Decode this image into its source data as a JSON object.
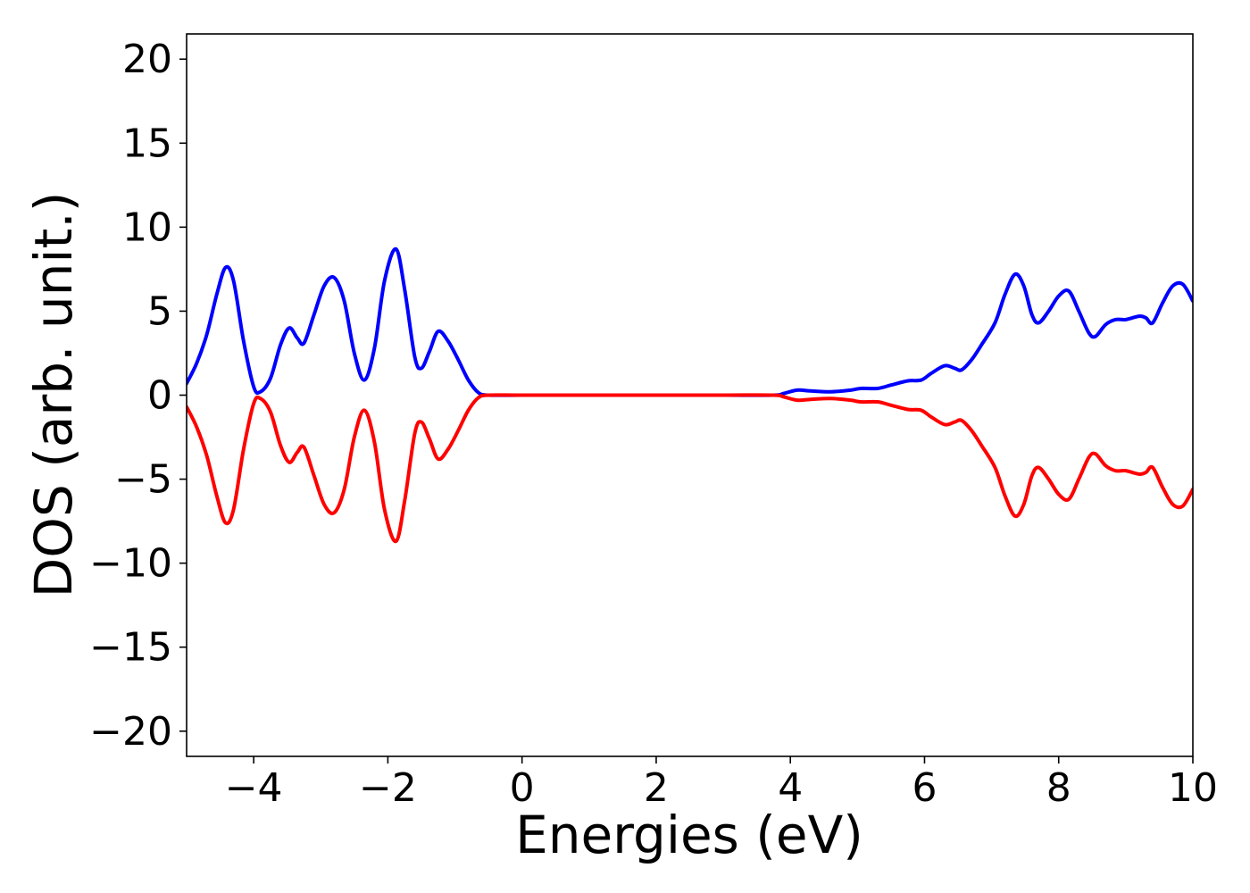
{
  "chart_data": {
    "type": "line",
    "title": "",
    "xlabel": "Energies (eV)",
    "ylabel": "DOS (arb. unit.)",
    "xlim": [
      -5,
      10
    ],
    "ylim": [
      -21.5,
      21.5
    ],
    "xticks": [
      {
        "value": -4,
        "label": "−4"
      },
      {
        "value": -2,
        "label": "−2"
      },
      {
        "value": 0,
        "label": "0"
      },
      {
        "value": 2,
        "label": "2"
      },
      {
        "value": 4,
        "label": "4"
      },
      {
        "value": 6,
        "label": "6"
      },
      {
        "value": 8,
        "label": "8"
      },
      {
        "value": 10,
        "label": "10"
      }
    ],
    "yticks": [
      {
        "value": -20,
        "label": "−20"
      },
      {
        "value": -15,
        "label": "−15"
      },
      {
        "value": -10,
        "label": "−10"
      },
      {
        "value": -5,
        "label": "−5"
      },
      {
        "value": 0,
        "label": "0"
      },
      {
        "value": 5,
        "label": "5"
      },
      {
        "value": 10,
        "label": "10"
      },
      {
        "value": 15,
        "label": "15"
      },
      {
        "value": 20,
        "label": "20"
      }
    ],
    "grid": false,
    "series": [
      {
        "color": "#0000ff",
        "points": [
          [
            -5.0,
            0.7
          ],
          [
            -4.85,
            1.9
          ],
          [
            -4.7,
            3.6
          ],
          [
            -4.55,
            6.0
          ],
          [
            -4.42,
            7.6
          ],
          [
            -4.3,
            6.8
          ],
          [
            -4.15,
            3.2
          ],
          [
            -4.0,
            0.5
          ],
          [
            -3.9,
            0.2
          ],
          [
            -3.75,
            1.0
          ],
          [
            -3.6,
            3.0
          ],
          [
            -3.47,
            4.0
          ],
          [
            -3.35,
            3.4
          ],
          [
            -3.25,
            3.1
          ],
          [
            -3.1,
            4.8
          ],
          [
            -2.95,
            6.5
          ],
          [
            -2.8,
            7.0
          ],
          [
            -2.65,
            5.6
          ],
          [
            -2.5,
            2.5
          ],
          [
            -2.35,
            0.9
          ],
          [
            -2.2,
            2.8
          ],
          [
            -2.05,
            6.8
          ],
          [
            -1.88,
            8.7
          ],
          [
            -1.75,
            6.3
          ],
          [
            -1.6,
            2.3
          ],
          [
            -1.5,
            1.6
          ],
          [
            -1.38,
            2.6
          ],
          [
            -1.25,
            3.8
          ],
          [
            -1.1,
            3.2
          ],
          [
            -0.95,
            2.1
          ],
          [
            -0.8,
            0.9
          ],
          [
            -0.65,
            0.15
          ],
          [
            -0.5,
            0.0
          ],
          [
            0.0,
            0.0
          ],
          [
            1.0,
            0.0
          ],
          [
            2.0,
            0.0
          ],
          [
            3.0,
            0.0
          ],
          [
            3.75,
            0.0
          ],
          [
            3.9,
            0.1
          ],
          [
            4.1,
            0.3
          ],
          [
            4.3,
            0.25
          ],
          [
            4.6,
            0.2
          ],
          [
            4.9,
            0.3
          ],
          [
            5.05,
            0.4
          ],
          [
            5.3,
            0.4
          ],
          [
            5.5,
            0.6
          ],
          [
            5.75,
            0.85
          ],
          [
            5.95,
            0.9
          ],
          [
            6.1,
            1.3
          ],
          [
            6.3,
            1.75
          ],
          [
            6.45,
            1.6
          ],
          [
            6.55,
            1.5
          ],
          [
            6.7,
            2.1
          ],
          [
            6.85,
            3.0
          ],
          [
            7.05,
            4.3
          ],
          [
            7.2,
            6.0
          ],
          [
            7.35,
            7.2
          ],
          [
            7.48,
            6.5
          ],
          [
            7.6,
            4.8
          ],
          [
            7.7,
            4.3
          ],
          [
            7.85,
            5.0
          ],
          [
            8.0,
            5.9
          ],
          [
            8.15,
            6.2
          ],
          [
            8.3,
            5.0
          ],
          [
            8.45,
            3.7
          ],
          [
            8.55,
            3.5
          ],
          [
            8.7,
            4.2
          ],
          [
            8.85,
            4.5
          ],
          [
            9.0,
            4.5
          ],
          [
            9.2,
            4.7
          ],
          [
            9.3,
            4.6
          ],
          [
            9.4,
            4.3
          ],
          [
            9.55,
            5.5
          ],
          [
            9.7,
            6.5
          ],
          [
            9.85,
            6.6
          ],
          [
            10.0,
            5.6
          ]
        ]
      },
      {
        "color": "#ff0000",
        "points": [
          [
            -5.0,
            -0.7
          ],
          [
            -4.85,
            -1.9
          ],
          [
            -4.7,
            -3.6
          ],
          [
            -4.55,
            -6.0
          ],
          [
            -4.42,
            -7.6
          ],
          [
            -4.3,
            -6.8
          ],
          [
            -4.15,
            -3.2
          ],
          [
            -4.0,
            -0.5
          ],
          [
            -3.9,
            -0.2
          ],
          [
            -3.75,
            -1.0
          ],
          [
            -3.6,
            -3.0
          ],
          [
            -3.47,
            -4.0
          ],
          [
            -3.35,
            -3.4
          ],
          [
            -3.25,
            -3.1
          ],
          [
            -3.1,
            -4.8
          ],
          [
            -2.95,
            -6.5
          ],
          [
            -2.8,
            -7.0
          ],
          [
            -2.65,
            -5.6
          ],
          [
            -2.5,
            -2.5
          ],
          [
            -2.35,
            -0.9
          ],
          [
            -2.2,
            -2.8
          ],
          [
            -2.05,
            -6.8
          ],
          [
            -1.88,
            -8.7
          ],
          [
            -1.75,
            -6.3
          ],
          [
            -1.6,
            -2.3
          ],
          [
            -1.5,
            -1.6
          ],
          [
            -1.38,
            -2.6
          ],
          [
            -1.25,
            -3.8
          ],
          [
            -1.1,
            -3.2
          ],
          [
            -0.95,
            -2.1
          ],
          [
            -0.8,
            -0.9
          ],
          [
            -0.65,
            -0.15
          ],
          [
            -0.5,
            0.0
          ],
          [
            0.0,
            0.0
          ],
          [
            1.0,
            0.0
          ],
          [
            2.0,
            0.0
          ],
          [
            3.0,
            0.0
          ],
          [
            3.75,
            0.0
          ],
          [
            3.9,
            -0.1
          ],
          [
            4.1,
            -0.3
          ],
          [
            4.3,
            -0.25
          ],
          [
            4.6,
            -0.2
          ],
          [
            4.9,
            -0.3
          ],
          [
            5.05,
            -0.4
          ],
          [
            5.3,
            -0.4
          ],
          [
            5.5,
            -0.6
          ],
          [
            5.75,
            -0.85
          ],
          [
            5.95,
            -0.9
          ],
          [
            6.1,
            -1.3
          ],
          [
            6.3,
            -1.75
          ],
          [
            6.45,
            -1.6
          ],
          [
            6.55,
            -1.5
          ],
          [
            6.7,
            -2.1
          ],
          [
            6.85,
            -3.0
          ],
          [
            7.05,
            -4.3
          ],
          [
            7.2,
            -6.0
          ],
          [
            7.35,
            -7.2
          ],
          [
            7.48,
            -6.5
          ],
          [
            7.6,
            -4.8
          ],
          [
            7.7,
            -4.3
          ],
          [
            7.85,
            -5.0
          ],
          [
            8.0,
            -5.9
          ],
          [
            8.15,
            -6.2
          ],
          [
            8.3,
            -5.0
          ],
          [
            8.45,
            -3.7
          ],
          [
            8.55,
            -3.5
          ],
          [
            8.7,
            -4.2
          ],
          [
            8.85,
            -4.5
          ],
          [
            9.0,
            -4.5
          ],
          [
            9.2,
            -4.7
          ],
          [
            9.3,
            -4.6
          ],
          [
            9.4,
            -4.3
          ],
          [
            9.55,
            -5.5
          ],
          [
            9.7,
            -6.5
          ],
          [
            9.85,
            -6.6
          ],
          [
            10.0,
            -5.6
          ]
        ]
      }
    ]
  }
}
